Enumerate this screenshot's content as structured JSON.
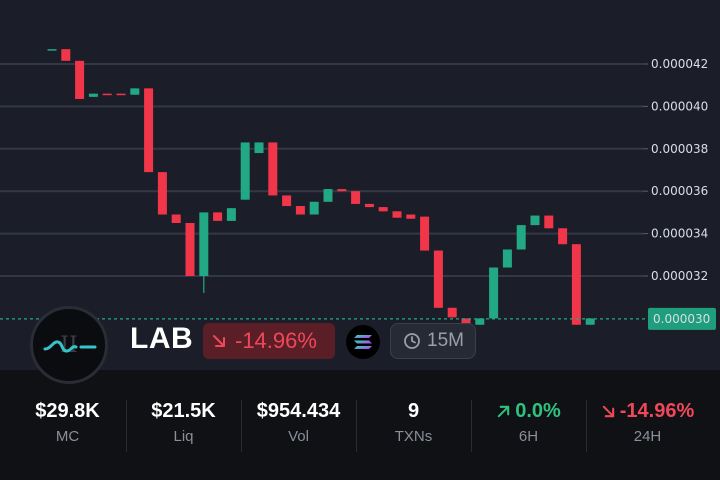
{
  "chart_data": {
    "type": "candlestick",
    "y_ticks": [
      "0.000042",
      "0.000040",
      "0.000038",
      "0.000036",
      "0.000034",
      "0.000032"
    ],
    "ylim": [
      2.92e-05,
      4.4e-05
    ],
    "current_price": "0.000030",
    "current_price_value": 3e-05,
    "up_color": "#22a884",
    "down_color": "#f2364a",
    "candles": [
      {
        "o": 4.27e-05,
        "h": 4.27e-05,
        "l": 4.27e-05,
        "c": 4.27e-05
      },
      {
        "o": 4.27e-05,
        "h": 4.27e-05,
        "l": 4.215e-05,
        "c": 4.215e-05
      },
      {
        "o": 4.215e-05,
        "h": 4.215e-05,
        "l": 4.035e-05,
        "c": 4.035e-05
      },
      {
        "o": 4.045e-05,
        "h": 4.06e-05,
        "l": 4.045e-05,
        "c": 4.06e-05
      },
      {
        "o": 4.06e-05,
        "h": 4.06e-05,
        "l": 4.058e-05,
        "c": 4.058e-05
      },
      {
        "o": 4.06e-05,
        "h": 4.06e-05,
        "l": 4.055e-05,
        "c": 4.055e-05
      },
      {
        "o": 4.055e-05,
        "h": 4.085e-05,
        "l": 4.055e-05,
        "c": 4.085e-05
      },
      {
        "o": 4.085e-05,
        "h": 4.085e-05,
        "l": 3.69e-05,
        "c": 3.69e-05
      },
      {
        "o": 3.69e-05,
        "h": 3.69e-05,
        "l": 3.49e-05,
        "c": 3.49e-05
      },
      {
        "o": 3.49e-05,
        "h": 3.49e-05,
        "l": 3.45e-05,
        "c": 3.45e-05
      },
      {
        "o": 3.45e-05,
        "h": 3.45e-05,
        "l": 3.2e-05,
        "c": 3.2e-05
      },
      {
        "o": 3.2e-05,
        "h": 3.5e-05,
        "l": 3.12e-05,
        "c": 3.5e-05
      },
      {
        "o": 3.5e-05,
        "h": 3.5e-05,
        "l": 3.46e-05,
        "c": 3.46e-05
      },
      {
        "o": 3.46e-05,
        "h": 3.52e-05,
        "l": 3.46e-05,
        "c": 3.52e-05
      },
      {
        "o": 3.56e-05,
        "h": 3.83e-05,
        "l": 3.56e-05,
        "c": 3.83e-05
      },
      {
        "o": 3.78e-05,
        "h": 3.83e-05,
        "l": 3.78e-05,
        "c": 3.83e-05
      },
      {
        "o": 3.83e-05,
        "h": 3.83e-05,
        "l": 3.58e-05,
        "c": 3.58e-05
      },
      {
        "o": 3.58e-05,
        "h": 3.58e-05,
        "l": 3.53e-05,
        "c": 3.53e-05
      },
      {
        "o": 3.53e-05,
        "h": 3.53e-05,
        "l": 3.49e-05,
        "c": 3.49e-05
      },
      {
        "o": 3.49e-05,
        "h": 3.55e-05,
        "l": 3.49e-05,
        "c": 3.55e-05
      },
      {
        "o": 3.55e-05,
        "h": 3.61e-05,
        "l": 3.55e-05,
        "c": 3.61e-05
      },
      {
        "o": 3.61e-05,
        "h": 3.61e-05,
        "l": 3.6e-05,
        "c": 3.6e-05
      },
      {
        "o": 3.6e-05,
        "h": 3.6e-05,
        "l": 3.54e-05,
        "c": 3.54e-05
      },
      {
        "o": 3.54e-05,
        "h": 3.54e-05,
        "l": 3.525e-05,
        "c": 3.525e-05
      },
      {
        "o": 3.525e-05,
        "h": 3.525e-05,
        "l": 3.505e-05,
        "c": 3.505e-05
      },
      {
        "o": 3.505e-05,
        "h": 3.505e-05,
        "l": 3.475e-05,
        "c": 3.475e-05
      },
      {
        "o": 3.49e-05,
        "h": 3.49e-05,
        "l": 3.47e-05,
        "c": 3.47e-05
      },
      {
        "o": 3.48e-05,
        "h": 3.48e-05,
        "l": 3.32e-05,
        "c": 3.32e-05
      },
      {
        "o": 3.32e-05,
        "h": 3.32e-05,
        "l": 3.05e-05,
        "c": 3.05e-05
      },
      {
        "o": 3.05e-05,
        "h": 3.05e-05,
        "l": 3.005e-05,
        "c": 3.005e-05
      },
      {
        "o": 3e-05,
        "h": 3e-05,
        "l": 2.96e-05,
        "c": 2.96e-05
      },
      {
        "o": 2.97e-05,
        "h": 3e-05,
        "l": 2.97e-05,
        "c": 3e-05
      },
      {
        "o": 3e-05,
        "h": 3.24e-05,
        "l": 3e-05,
        "c": 3.24e-05
      },
      {
        "o": 3.24e-05,
        "h": 3.325e-05,
        "l": 3.24e-05,
        "c": 3.325e-05
      },
      {
        "o": 3.325e-05,
        "h": 3.44e-05,
        "l": 3.325e-05,
        "c": 3.44e-05
      },
      {
        "o": 3.44e-05,
        "h": 3.485e-05,
        "l": 3.44e-05,
        "c": 3.485e-05
      },
      {
        "o": 3.485e-05,
        "h": 3.485e-05,
        "l": 3.425e-05,
        "c": 3.425e-05
      },
      {
        "o": 3.425e-05,
        "h": 3.425e-05,
        "l": 3.35e-05,
        "c": 3.35e-05
      },
      {
        "o": 3.35e-05,
        "h": 3.35e-05,
        "l": 2.97e-05,
        "c": 2.97e-05
      },
      {
        "o": 2.97e-05,
        "h": 3e-05,
        "l": 2.97e-05,
        "c": 3e-05
      }
    ]
  },
  "token": {
    "ticker": "LAB",
    "change": "-14.96%",
    "change_icon": "arrow-down-right-icon",
    "chain_icon": "solana-icon",
    "timeframe": "15M",
    "timeframe_icon": "clock-icon",
    "logo_icon": "lab-logo-icon"
  },
  "stats": [
    {
      "value": "$29.8K",
      "label": "MC"
    },
    {
      "value": "$21.5K",
      "label": "Liq"
    },
    {
      "value": "$954.434",
      "label": "Vol"
    },
    {
      "value": "9",
      "label": "TXNs"
    },
    {
      "value": "0.0%",
      "label": "6H",
      "trend": "up",
      "color": "#2ec27e"
    },
    {
      "value": "-14.96%",
      "label": "24H",
      "trend": "down",
      "color": "#f0485a"
    }
  ]
}
